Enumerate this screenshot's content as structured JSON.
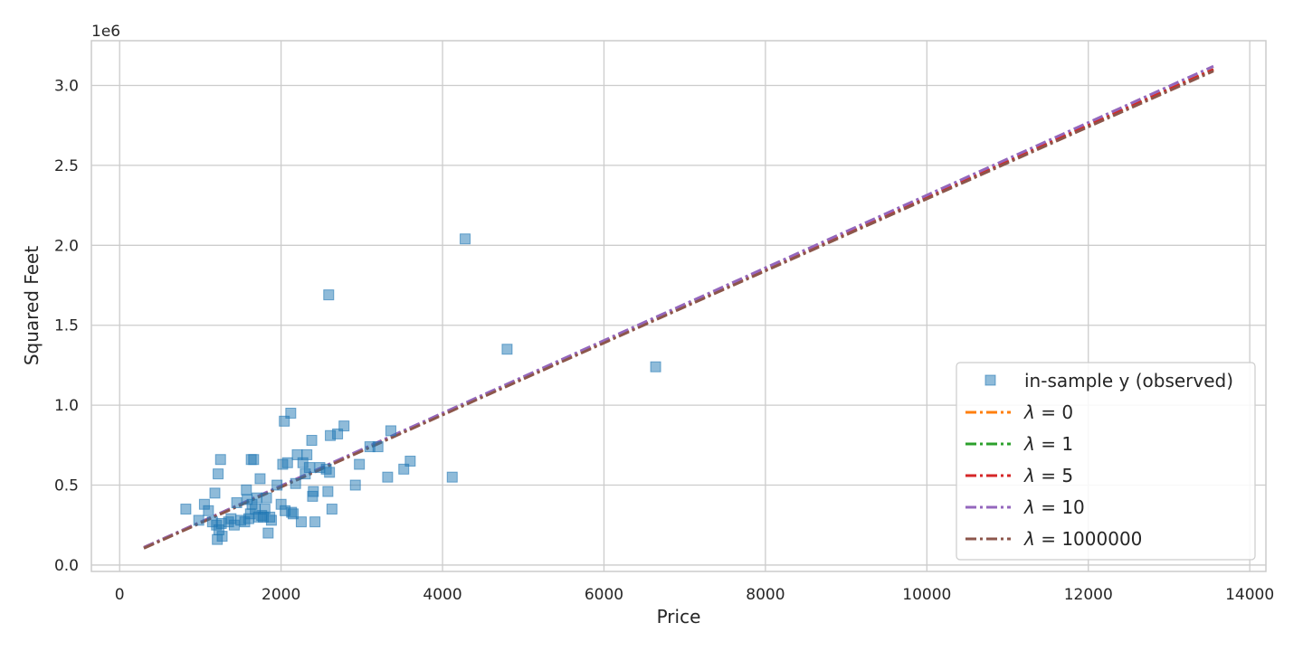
{
  "chart_data": {
    "type": "scatter",
    "title": "",
    "xlabel": "Price",
    "ylabel": "Squared Feet",
    "y_offset_label": "1e6",
    "xlim": [
      -350,
      14200
    ],
    "ylim": [
      -0.04,
      3.28
    ],
    "x_ticks": [
      0,
      2000,
      4000,
      6000,
      8000,
      10000,
      12000,
      14000
    ],
    "x_tick_labels": [
      "0",
      "2000",
      "4000",
      "6000",
      "8000",
      "10000",
      "12000",
      "14000"
    ],
    "y_ticks": [
      0.0,
      0.5,
      1.0,
      1.5,
      2.0,
      2.5,
      3.0
    ],
    "y_tick_labels": [
      "0.0",
      "0.5",
      "1.0",
      "1.5",
      "2.0",
      "2.5",
      "3.0"
    ],
    "grid": true,
    "legend_position": "lower-right",
    "scatter": {
      "name": "in-sample y (observed)",
      "color": "#1f77b4",
      "marker": "square",
      "points": [
        [
          820,
          0.35
        ],
        [
          980,
          0.28
        ],
        [
          1050,
          0.38
        ],
        [
          1100,
          0.34
        ],
        [
          1150,
          0.27
        ],
        [
          1180,
          0.45
        ],
        [
          1200,
          0.25
        ],
        [
          1210,
          0.16
        ],
        [
          1220,
          0.57
        ],
        [
          1230,
          0.22
        ],
        [
          1250,
          0.66
        ],
        [
          1260,
          0.26
        ],
        [
          1270,
          0.18
        ],
        [
          1350,
          0.27
        ],
        [
          1380,
          0.29
        ],
        [
          1420,
          0.25
        ],
        [
          1450,
          0.39
        ],
        [
          1500,
          0.28
        ],
        [
          1550,
          0.27
        ],
        [
          1570,
          0.47
        ],
        [
          1580,
          0.41
        ],
        [
          1600,
          0.29
        ],
        [
          1620,
          0.32
        ],
        [
          1630,
          0.66
        ],
        [
          1640,
          0.38
        ],
        [
          1660,
          0.66
        ],
        [
          1680,
          0.35
        ],
        [
          1700,
          0.42
        ],
        [
          1720,
          0.3
        ],
        [
          1740,
          0.54
        ],
        [
          1760,
          0.31
        ],
        [
          1780,
          0.3
        ],
        [
          1800,
          0.35
        ],
        [
          1820,
          0.42
        ],
        [
          1840,
          0.2
        ],
        [
          1860,
          0.3
        ],
        [
          1880,
          0.28
        ],
        [
          1950,
          0.5
        ],
        [
          2000,
          0.38
        ],
        [
          2020,
          0.63
        ],
        [
          2040,
          0.9
        ],
        [
          2050,
          0.34
        ],
        [
          2080,
          0.64
        ],
        [
          2120,
          0.95
        ],
        [
          2130,
          0.33
        ],
        [
          2150,
          0.32
        ],
        [
          2180,
          0.51
        ],
        [
          2200,
          0.69
        ],
        [
          2250,
          0.27
        ],
        [
          2270,
          0.64
        ],
        [
          2300,
          0.57
        ],
        [
          2320,
          0.69
        ],
        [
          2350,
          0.61
        ],
        [
          2380,
          0.78
        ],
        [
          2390,
          0.43
        ],
        [
          2400,
          0.46
        ],
        [
          2420,
          0.27
        ],
        [
          2480,
          0.61
        ],
        [
          2560,
          0.6
        ],
        [
          2580,
          0.46
        ],
        [
          2590,
          1.69
        ],
        [
          2600,
          0.58
        ],
        [
          2610,
          0.81
        ],
        [
          2630,
          0.35
        ],
        [
          2700,
          0.82
        ],
        [
          2780,
          0.87
        ],
        [
          2920,
          0.5
        ],
        [
          2970,
          0.63
        ],
        [
          3100,
          0.74
        ],
        [
          3200,
          0.74
        ],
        [
          3320,
          0.55
        ],
        [
          3360,
          0.84
        ],
        [
          3520,
          0.6
        ],
        [
          3600,
          0.65
        ],
        [
          4120,
          0.55
        ],
        [
          4280,
          2.04
        ],
        [
          4800,
          1.35
        ],
        [
          6640,
          1.24
        ]
      ]
    },
    "series": [
      {
        "name": "λ = 0",
        "lambda": "0",
        "color": "#ff7f0e",
        "x": [
          300,
          13550
        ],
        "y": [
          0.11,
          3.1
        ]
      },
      {
        "name": "λ = 1",
        "lambda": "1",
        "color": "#2ca02c",
        "x": [
          300,
          13550
        ],
        "y": [
          0.11,
          3.1
        ]
      },
      {
        "name": "λ = 5",
        "lambda": "5",
        "color": "#d62728",
        "x": [
          300,
          13550
        ],
        "y": [
          0.11,
          3.1
        ]
      },
      {
        "name": "λ = 10",
        "lambda": "10",
        "color": "#9467bd",
        "x": [
          300,
          13550
        ],
        "y": [
          0.11,
          3.12
        ]
      },
      {
        "name": "λ = 1000000",
        "lambda": "1000000",
        "color": "#8c564b",
        "x": [
          300,
          13550
        ],
        "y": [
          0.105,
          3.09
        ]
      }
    ]
  }
}
